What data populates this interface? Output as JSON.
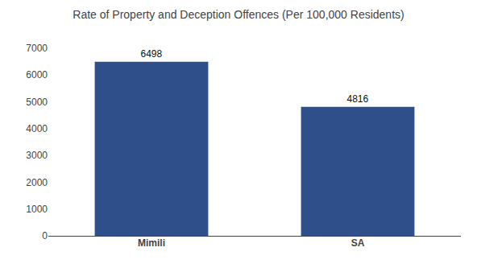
{
  "chart_data": {
    "type": "bar",
    "title": "Rate of Property and Deception Offences (Per 100,000 Residents)",
    "categories": [
      "Mimili",
      "SA"
    ],
    "values": [
      6498,
      4816
    ],
    "color": "#2e4f8a",
    "ylim": [
      0,
      7000
    ],
    "yticks": [
      0,
      1000,
      2000,
      3000,
      4000,
      5000,
      6000,
      7000
    ],
    "grid": false,
    "data_labels": true
  }
}
